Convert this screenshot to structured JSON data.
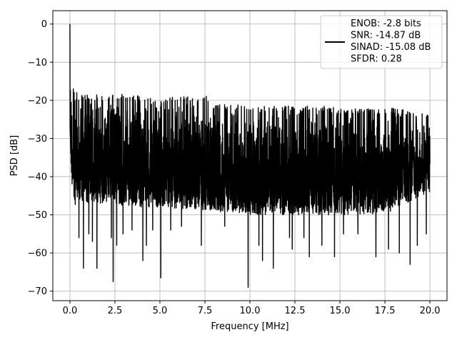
{
  "chart_data": {
    "type": "line",
    "title": "",
    "xlabel": "Frequency [MHz]",
    "ylabel": "PSD [dB]",
    "xlim": [
      -0.95,
      20.95
    ],
    "ylim": [
      -72.5,
      3.5
    ],
    "xticks": [
      0.0,
      2.5,
      5.0,
      7.5,
      10.0,
      12.5,
      15.0,
      17.5,
      20.0
    ],
    "xtick_labels": [
      "0.0",
      "2.5",
      "5.0",
      "7.5",
      "10.0",
      "12.5",
      "15.0",
      "17.5",
      "20.0"
    ],
    "yticks": [
      0,
      -10,
      -20,
      -30,
      -40,
      -50,
      -60,
      -70
    ],
    "ytick_labels": [
      "0",
      "−10",
      "−20",
      "−30",
      "−40",
      "−50",
      "−60",
      "−70"
    ],
    "grid": true,
    "legend_position": "top-right",
    "line_color": "#000000",
    "legend": {
      "lines": [
        "ENOB: -2.8 bits",
        "SNR: -14.87 dB",
        "SINAD: -15.08 dB",
        "SFDR: 0.28"
      ]
    },
    "series": [
      {
        "description_peak": {
          "x": 0.0,
          "y": 0.0
        },
        "x_range": [
          0.0,
          20.0
        ],
        "upper_envelope_x": [
          0.0,
          0.05,
          0.1,
          0.2,
          0.5,
          1,
          1.5,
          2,
          3,
          4,
          5,
          6,
          7,
          7.5,
          8,
          9,
          10,
          11,
          12,
          13,
          14,
          15,
          16,
          17,
          18,
          19,
          20
        ],
        "upper_envelope_y": [
          0.0,
          -12,
          -14,
          -17,
          -18,
          -18.5,
          -18,
          -19,
          -18,
          -19,
          -19.5,
          -19,
          -19,
          -18,
          -21,
          -21,
          -21.5,
          -21.5,
          -21.5,
          -21.5,
          -21.5,
          -22,
          -22,
          -22,
          -22,
          -22.5,
          -24
        ],
        "lower_envelope_x": [
          0.0,
          0.2,
          0.5,
          1,
          2,
          3,
          5,
          7.5,
          10,
          12.5,
          15,
          17.5,
          20
        ],
        "lower_envelope_y": [
          -34,
          -48,
          -46,
          -47,
          -47,
          -48,
          -48,
          -49,
          -50,
          -50,
          -50,
          -50,
          -44
        ],
        "deep_nulls": [
          {
            "x": 0.5,
            "y": -56
          },
          {
            "x": 0.75,
            "y": -64
          },
          {
            "x": 1.05,
            "y": -55
          },
          {
            "x": 1.25,
            "y": -57
          },
          {
            "x": 1.5,
            "y": -64
          },
          {
            "x": 2.3,
            "y": -56
          },
          {
            "x": 2.4,
            "y": -67.5
          },
          {
            "x": 2.6,
            "y": -58
          },
          {
            "x": 2.95,
            "y": -55
          },
          {
            "x": 3.45,
            "y": -54
          },
          {
            "x": 4.05,
            "y": -62
          },
          {
            "x": 4.25,
            "y": -58
          },
          {
            "x": 4.6,
            "y": -54
          },
          {
            "x": 5.05,
            "y": -66.5
          },
          {
            "x": 5.6,
            "y": -54
          },
          {
            "x": 6.2,
            "y": -53
          },
          {
            "x": 7.3,
            "y": -58
          },
          {
            "x": 8.6,
            "y": -53
          },
          {
            "x": 9.9,
            "y": -69
          },
          {
            "x": 10.5,
            "y": -58
          },
          {
            "x": 10.7,
            "y": -62
          },
          {
            "x": 11.3,
            "y": -64
          },
          {
            "x": 12.2,
            "y": -56
          },
          {
            "x": 12.35,
            "y": -59
          },
          {
            "x": 13.0,
            "y": -56
          },
          {
            "x": 13.3,
            "y": -61
          },
          {
            "x": 14.0,
            "y": -58
          },
          {
            "x": 14.7,
            "y": -61
          },
          {
            "x": 15.2,
            "y": -55
          },
          {
            "x": 16.0,
            "y": -55
          },
          {
            "x": 17.0,
            "y": -61
          },
          {
            "x": 17.7,
            "y": -59
          },
          {
            "x": 18.3,
            "y": -60
          },
          {
            "x": 18.9,
            "y": -63
          },
          {
            "x": 19.3,
            "y": -58
          },
          {
            "x": 19.8,
            "y": -55
          }
        ]
      }
    ]
  }
}
